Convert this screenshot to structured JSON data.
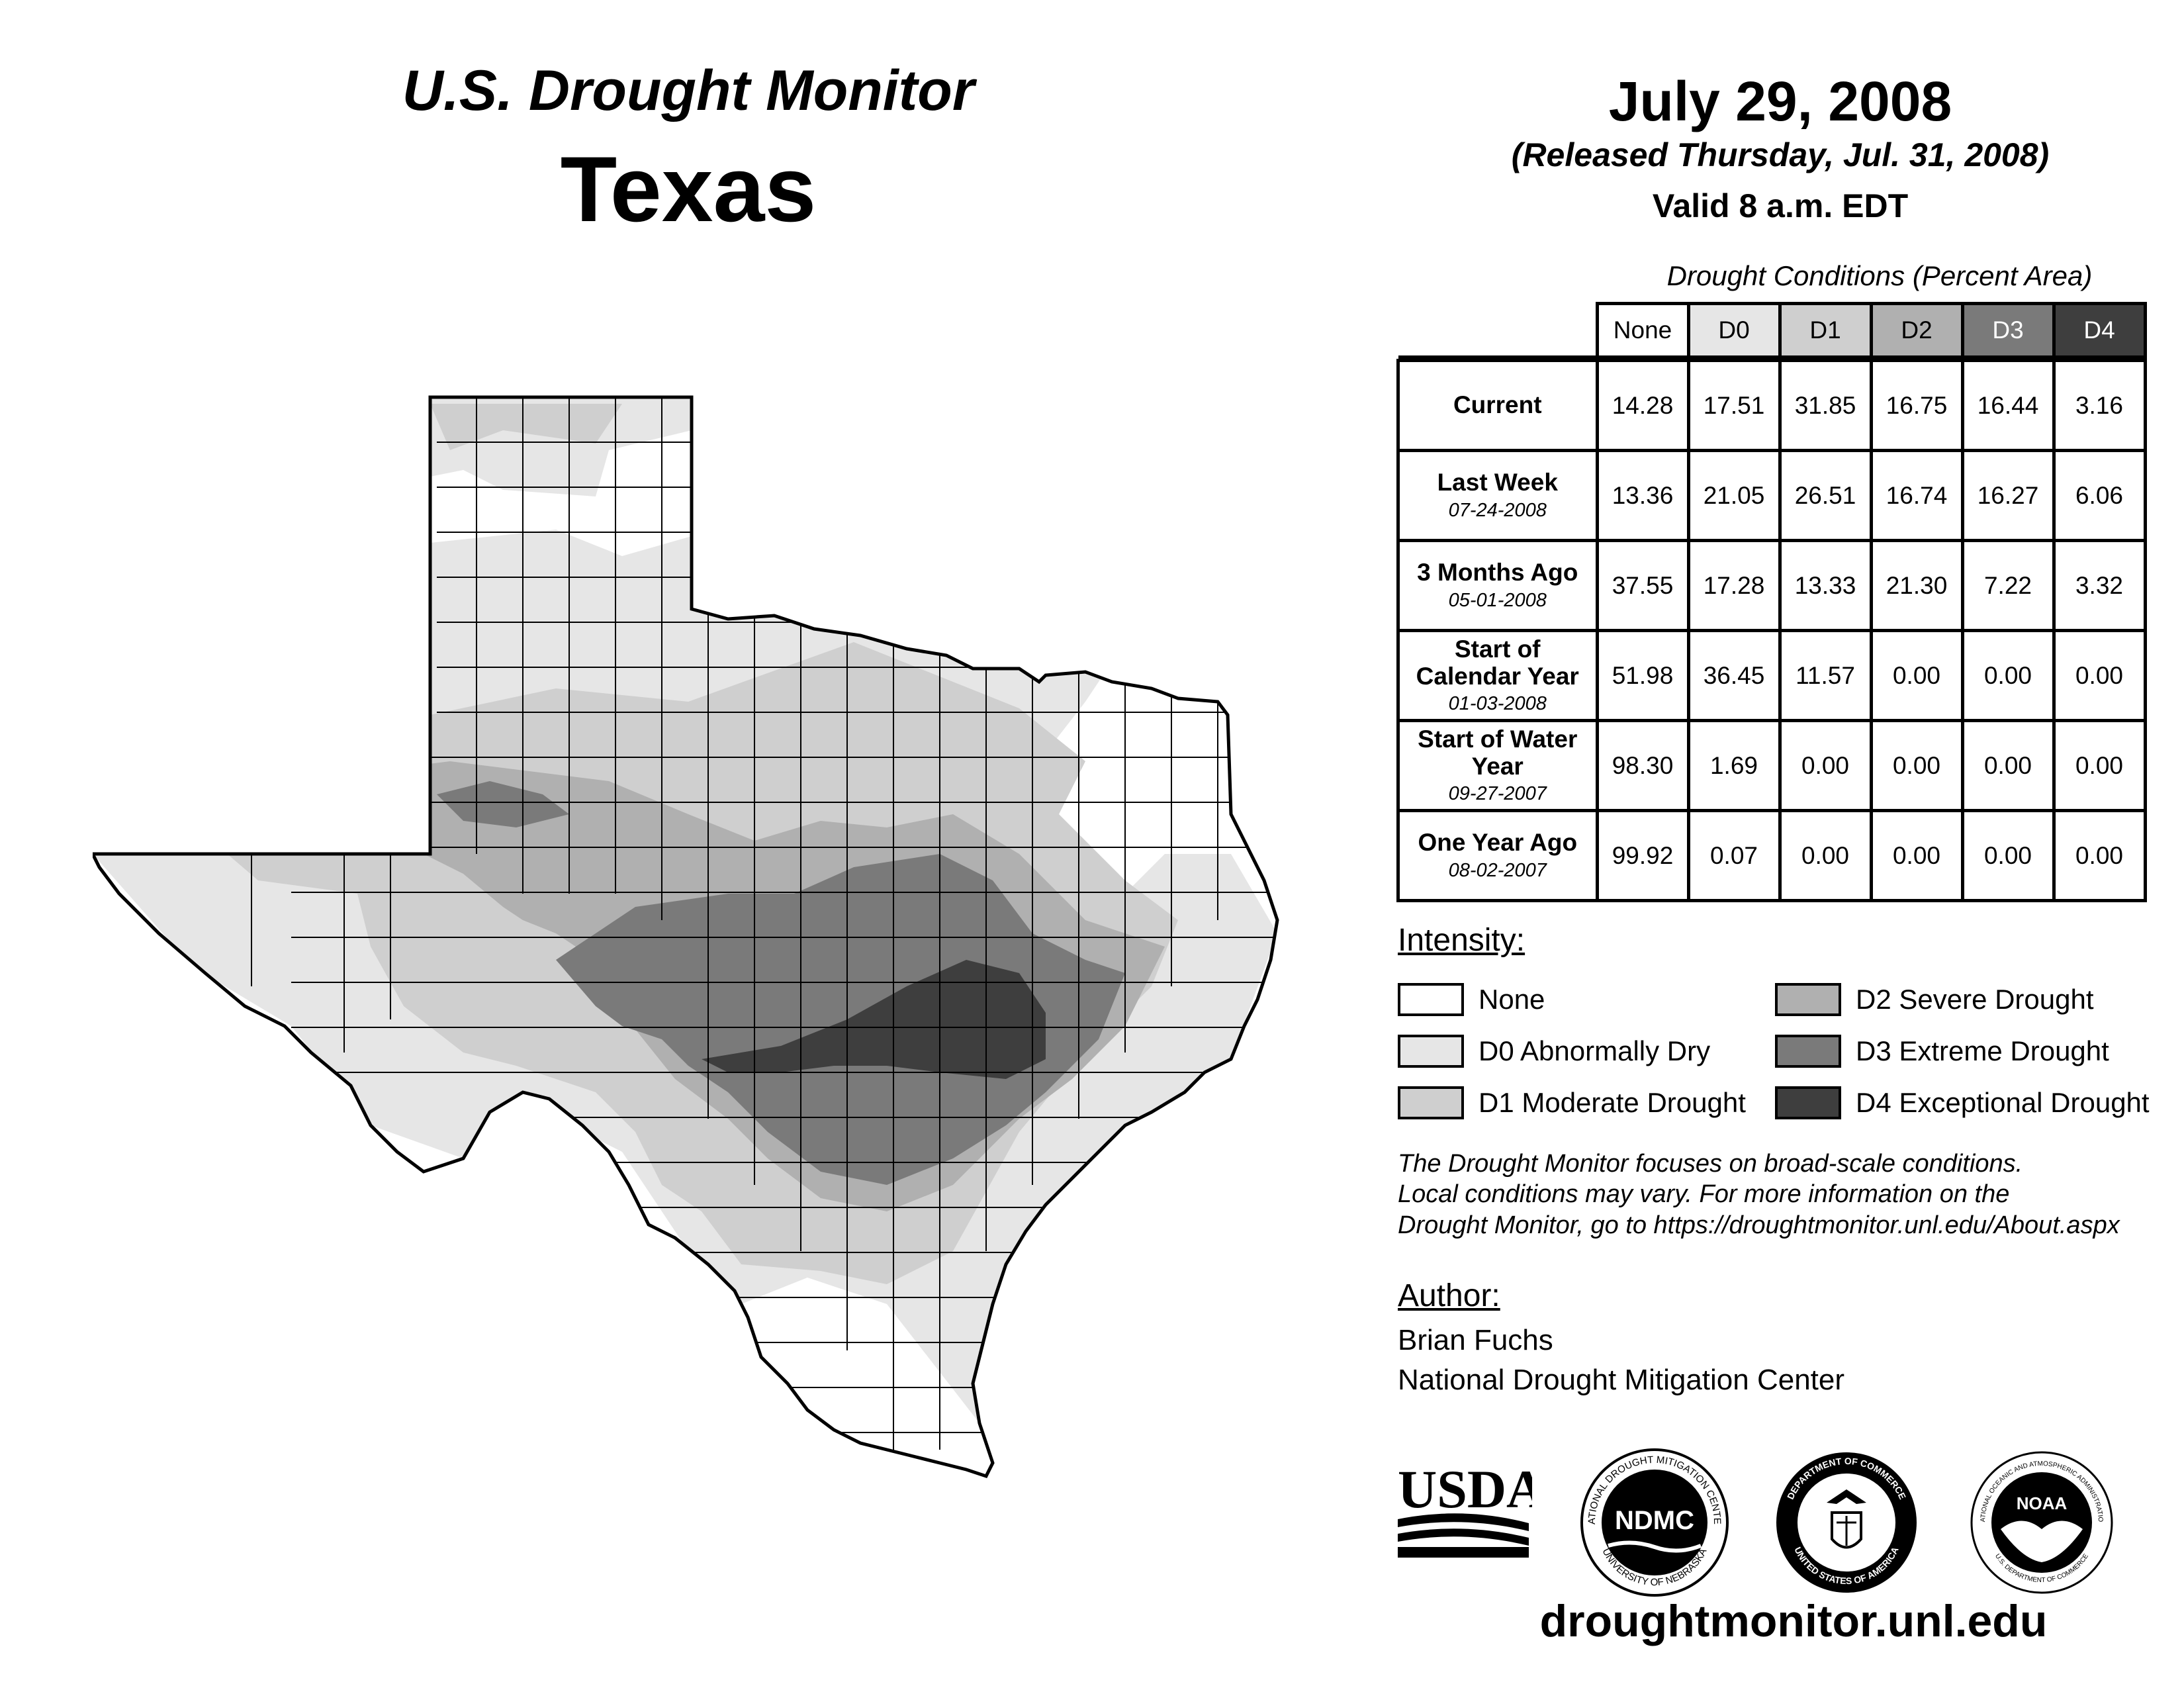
{
  "header": {
    "monitor_title": "U.S. Drought Monitor",
    "state": "Texas",
    "date": "July 29, 2008",
    "released": "(Released Thursday, Jul. 31, 2008)",
    "valid": "Valid 8 a.m. EDT"
  },
  "table": {
    "caption": "Drought Conditions (Percent Area)",
    "columns": [
      "None",
      "D0",
      "D1",
      "D2",
      "D3",
      "D4"
    ],
    "rows": [
      {
        "label": "Current",
        "date": "",
        "values": [
          "14.28",
          "17.51",
          "31.85",
          "16.75",
          "16.44",
          "3.16"
        ]
      },
      {
        "label": "Last Week",
        "date": "07-24-2008",
        "values": [
          "13.36",
          "21.05",
          "26.51",
          "16.74",
          "16.27",
          "6.06"
        ]
      },
      {
        "label": "3 Months Ago",
        "date": "05-01-2008",
        "values": [
          "37.55",
          "17.28",
          "13.33",
          "21.30",
          "7.22",
          "3.32"
        ]
      },
      {
        "label": "Start of Calendar Year",
        "date": "01-03-2008",
        "values": [
          "51.98",
          "36.45",
          "11.57",
          "0.00",
          "0.00",
          "0.00"
        ]
      },
      {
        "label": "Start of Water Year",
        "date": "09-27-2007",
        "values": [
          "98.30",
          "1.69",
          "0.00",
          "0.00",
          "0.00",
          "0.00"
        ]
      },
      {
        "label": "One Year Ago",
        "date": "08-02-2007",
        "values": [
          "99.92",
          "0.07",
          "0.00",
          "0.00",
          "0.00",
          "0.00"
        ]
      }
    ]
  },
  "legend": {
    "heading": "Intensity:",
    "items": [
      {
        "label": "None",
        "color": "#ffffff"
      },
      {
        "label": "D0 Abnormally Dry",
        "color": "#e6e6e6"
      },
      {
        "label": "D1 Moderate Drought",
        "color": "#cfcfcf"
      },
      {
        "label": "D2 Severe Drought",
        "color": "#b0b0b0"
      },
      {
        "label": "D3 Extreme Drought",
        "color": "#7a7a7a"
      },
      {
        "label": "D4 Exceptional Drought",
        "color": "#3e3e3e"
      }
    ]
  },
  "note": {
    "line1": "The Drought Monitor focuses on broad-scale conditions.",
    "line2": "Local conditions may vary. For more information on the",
    "line3": "Drought Monitor, go to https://droughtmonitor.unl.edu/About.aspx"
  },
  "author": {
    "heading": "Author:",
    "name": "Brian Fuchs",
    "org": "National Drought Mitigation Center"
  },
  "logos": {
    "usda": "USDA",
    "ndmc": "NDMC",
    "ndmc_ring_top": "NATIONAL DROUGHT MITIGATION CENTER",
    "ndmc_ring_bottom": "UNIVERSITY OF NEBRASKA",
    "doc_ring_top": "DEPARTMENT OF COMMERCE",
    "doc_ring_bottom": "UNITED STATES OF AMERICA",
    "noaa": "NOAA",
    "noaa_ring_top": "NATIONAL OCEANIC AND ATMOSPHERIC ADMINISTRATION",
    "noaa_ring_bottom": "U.S. DEPARTMENT OF COMMERCE"
  },
  "website": "droughtmonitor.unl.edu"
}
